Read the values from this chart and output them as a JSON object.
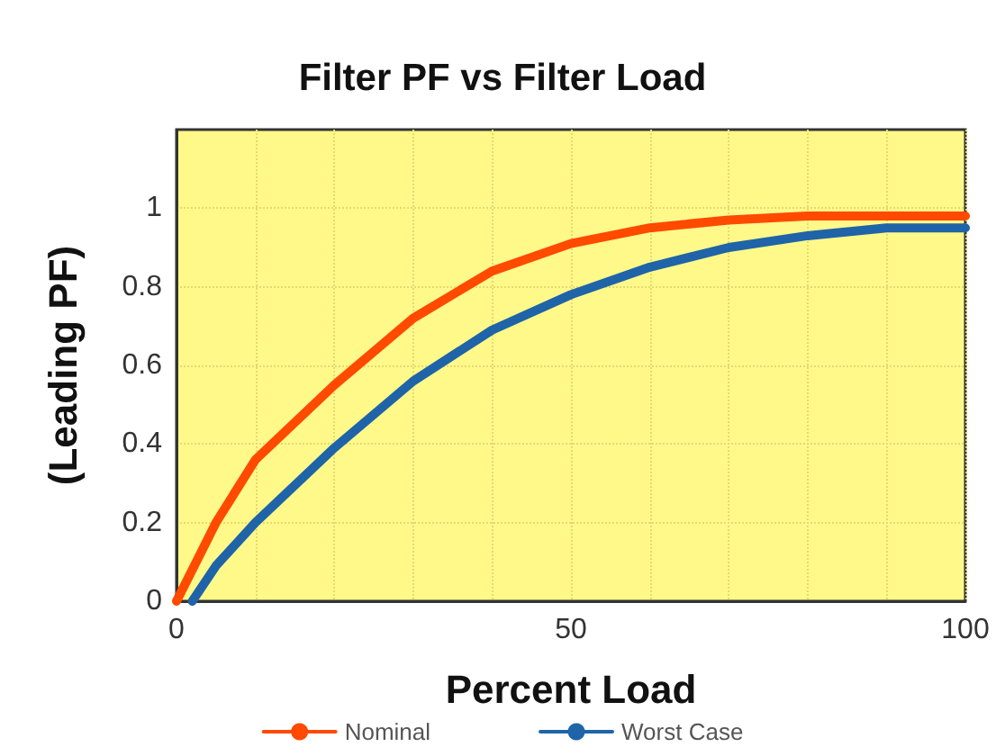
{
  "chart_data": {
    "type": "line",
    "title": "Filter PF vs Filter Load",
    "xlabel": "Percent Load",
    "ylabel": "(Leading PF)",
    "x": [
      0,
      5,
      10,
      20,
      30,
      40,
      50,
      60,
      70,
      80,
      90,
      100
    ],
    "series": [
      {
        "name": "Nominal",
        "color": "#ff4a00",
        "values": [
          0,
          0.2,
          0.36,
          0.55,
          0.72,
          0.84,
          0.91,
          0.95,
          0.97,
          0.98,
          0.98,
          0.98
        ]
      },
      {
        "name": "Worst Case",
        "color": "#1f64a8",
        "x": [
          2,
          5,
          10,
          20,
          30,
          40,
          50,
          60,
          70,
          80,
          90,
          100
        ],
        "values": [
          0,
          0.09,
          0.2,
          0.39,
          0.56,
          0.69,
          0.78,
          0.85,
          0.9,
          0.93,
          0.95,
          0.95
        ]
      }
    ],
    "xlim": [
      0,
      100
    ],
    "ylim": [
      0,
      1.2
    ],
    "xticks": [
      0,
      {
        "value": 10,
        "label": null
      },
      {
        "value": 20,
        "label": null
      },
      {
        "value": 30,
        "label": null
      },
      {
        "value": 40,
        "label": null
      },
      50,
      {
        "value": 60,
        "label": null
      },
      {
        "value": 70,
        "label": null
      },
      {
        "value": 80,
        "label": null
      },
      {
        "value": 90,
        "label": null
      },
      100
    ],
    "yticks": [
      0,
      0.2,
      0.4,
      0.6,
      0.8,
      1
    ],
    "grid": true,
    "legend": "bottom",
    "marker": "none",
    "line_style": "solid"
  }
}
